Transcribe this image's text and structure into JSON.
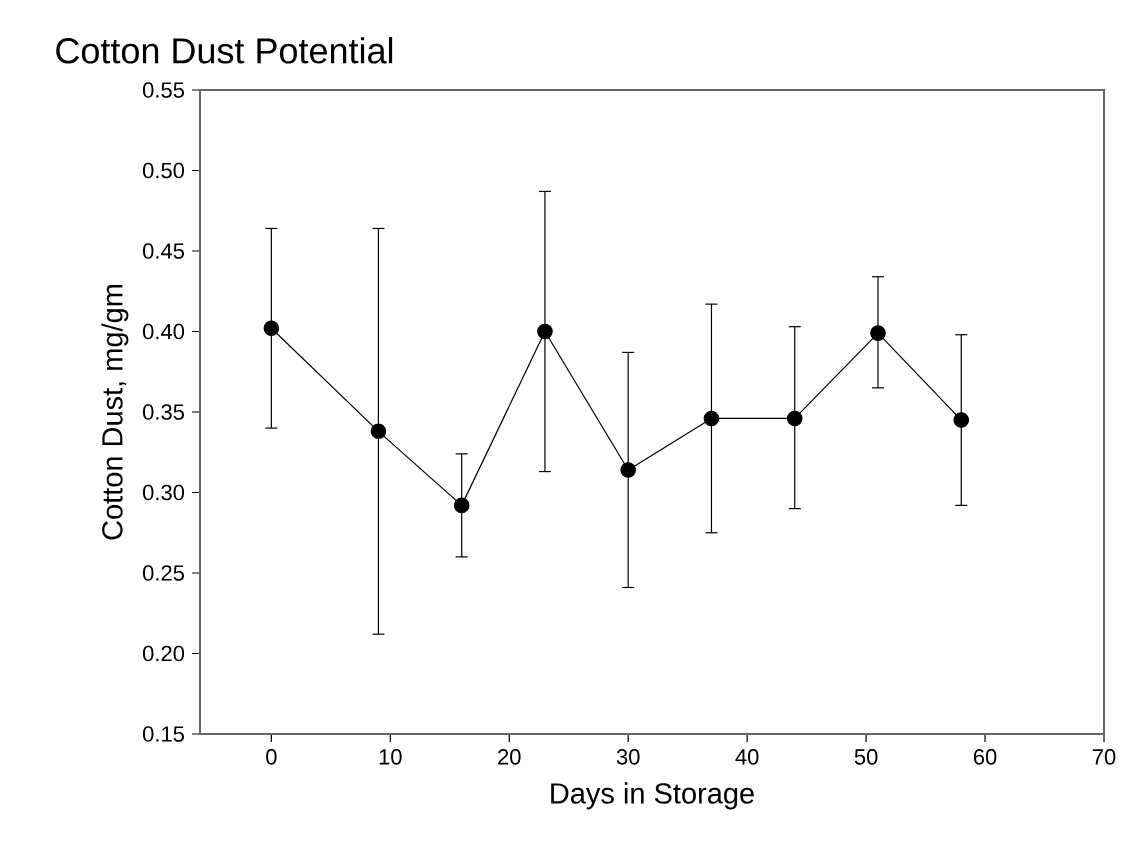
{
  "chart_data": {
    "type": "line",
    "title": "Cotton Dust Potential",
    "xlabel": "Days in Storage",
    "ylabel": "Cotton Dust, mg/gm",
    "x": [
      0,
      9,
      16,
      23,
      30,
      37,
      44,
      51,
      58
    ],
    "series": [
      {
        "color": "#000000",
        "values": [
          0.402,
          0.338,
          0.292,
          0.4,
          0.314,
          0.346,
          0.346,
          0.399,
          0.345
        ],
        "errors": [
          [
            0.34,
            0.464
          ],
          [
            0.212,
            0.464
          ],
          [
            0.26,
            0.324
          ],
          [
            0.313,
            0.487
          ],
          [
            0.241,
            0.387
          ],
          [
            0.275,
            0.417
          ],
          [
            0.29,
            0.403
          ],
          [
            0.365,
            0.434
          ],
          [
            0.292,
            0.398
          ]
        ]
      }
    ],
    "xlim": [
      -6,
      70
    ],
    "xticks": [
      0,
      10,
      20,
      30,
      40,
      50,
      60,
      70
    ],
    "ylim": [
      0.15,
      0.55
    ],
    "yticks": [
      {
        "value": 0.15,
        "label": "0.15"
      },
      {
        "value": 0.2,
        "label": "0.20"
      },
      {
        "value": 0.25,
        "label": "0.25"
      },
      {
        "value": 0.3,
        "label": "0.30"
      },
      {
        "value": 0.35,
        "label": "0.35"
      },
      {
        "value": 0.4,
        "label": "0.40"
      },
      {
        "value": 0.45,
        "label": "0.45"
      },
      {
        "value": 0.5,
        "label": "0.50"
      },
      {
        "value": 0.55,
        "label": "0.55"
      }
    ],
    "marker": "circle",
    "line_style": "solid",
    "grid": false
  }
}
